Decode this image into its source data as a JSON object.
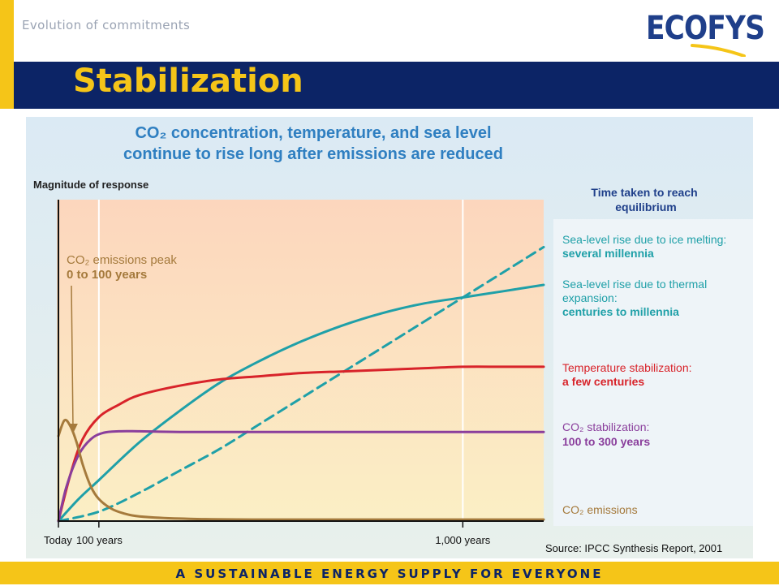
{
  "header": {
    "caption": "Evolution of commitments",
    "logo_text": "ECOFYS",
    "title": "Stabilization"
  },
  "colors": {
    "navy": "#0c2466",
    "yellow": "#f5c518",
    "logo_blue": "#1f3f8a",
    "title_blue": "#2f7fc1",
    "teal": "#1fa0a8",
    "red": "#d8232a",
    "purple": "#8a3e9c",
    "brown": "#a57a3c"
  },
  "chart_data": {
    "type": "line",
    "title_line1": "CO₂ concentration, temperature, and sea level",
    "title_line2": "continue to rise long after emissions are reduced",
    "ylabel": "Magnitude of response",
    "x_ticks": [
      {
        "value": 0,
        "label": "Today"
      },
      {
        "value": 100,
        "label": "100 years"
      },
      {
        "value": 1000,
        "label": "1,000 years"
      }
    ],
    "xlim": [
      0,
      1200
    ],
    "ylim": [
      0,
      1
    ],
    "legend_header": "Time taken to reach equilibrium",
    "annotation": {
      "line1": "CO₂ emissions peak",
      "line2": "0 to 100 years"
    },
    "series": [
      {
        "key": "sea_ice",
        "name": "Sea-level rise due to ice melting:",
        "label_value": "several millennia",
        "color": "#1fa0a8",
        "dashed": true,
        "x": [
          0,
          100,
          200,
          300,
          400,
          500,
          600,
          700,
          800,
          900,
          1000,
          1100,
          1200
        ],
        "y": [
          0,
          0.03,
          0.09,
          0.16,
          0.23,
          0.31,
          0.39,
          0.47,
          0.55,
          0.63,
          0.71,
          0.79,
          0.87
        ]
      },
      {
        "key": "sea_thermal",
        "name": "Sea-level rise due to thermal expansion:",
        "label_value": "centuries to millennia",
        "color": "#1fa0a8",
        "dashed": false,
        "x": [
          0,
          50,
          100,
          200,
          300,
          400,
          500,
          600,
          700,
          800,
          900,
          1000,
          1100,
          1200
        ],
        "y": [
          0,
          0.07,
          0.13,
          0.25,
          0.35,
          0.44,
          0.51,
          0.57,
          0.62,
          0.66,
          0.69,
          0.71,
          0.73,
          0.75
        ]
      },
      {
        "key": "temperature",
        "name": "Temperature stabilization:",
        "label_value": "a few centuries",
        "color": "#d8232a",
        "dashed": false,
        "x": [
          0,
          30,
          60,
          100,
          150,
          200,
          300,
          400,
          500,
          600,
          700,
          800,
          900,
          1000,
          1100,
          1200
        ],
        "y": [
          0,
          0.15,
          0.26,
          0.33,
          0.37,
          0.4,
          0.43,
          0.45,
          0.46,
          0.47,
          0.475,
          0.48,
          0.485,
          0.49,
          0.49,
          0.49
        ]
      },
      {
        "key": "co2_stab",
        "name": "CO₂ stabilization:",
        "label_value": "100 to 300 years",
        "color": "#8a3e9c",
        "dashed": false,
        "x": [
          0,
          20,
          50,
          80,
          110,
          150,
          200,
          300,
          500,
          800,
          1000,
          1200
        ],
        "y": [
          0,
          0.11,
          0.21,
          0.26,
          0.28,
          0.285,
          0.285,
          0.283,
          0.283,
          0.283,
          0.283,
          0.283
        ]
      },
      {
        "key": "co2_emissions",
        "name": "CO₂ emissions",
        "label_value": "",
        "color": "#a57a3c",
        "dashed": false,
        "x": [
          0,
          15,
          30,
          45,
          60,
          80,
          100,
          130,
          160,
          200,
          300,
          500,
          1200
        ],
        "y": [
          0.27,
          0.32,
          0.3,
          0.25,
          0.18,
          0.11,
          0.07,
          0.04,
          0.025,
          0.015,
          0.008,
          0.005,
          0.005
        ]
      }
    ],
    "source": "Source: IPCC Synthesis Report, 2001"
  },
  "footer": {
    "tagline": "A SUSTAINABLE ENERGY SUPPLY FOR EVERYONE"
  }
}
